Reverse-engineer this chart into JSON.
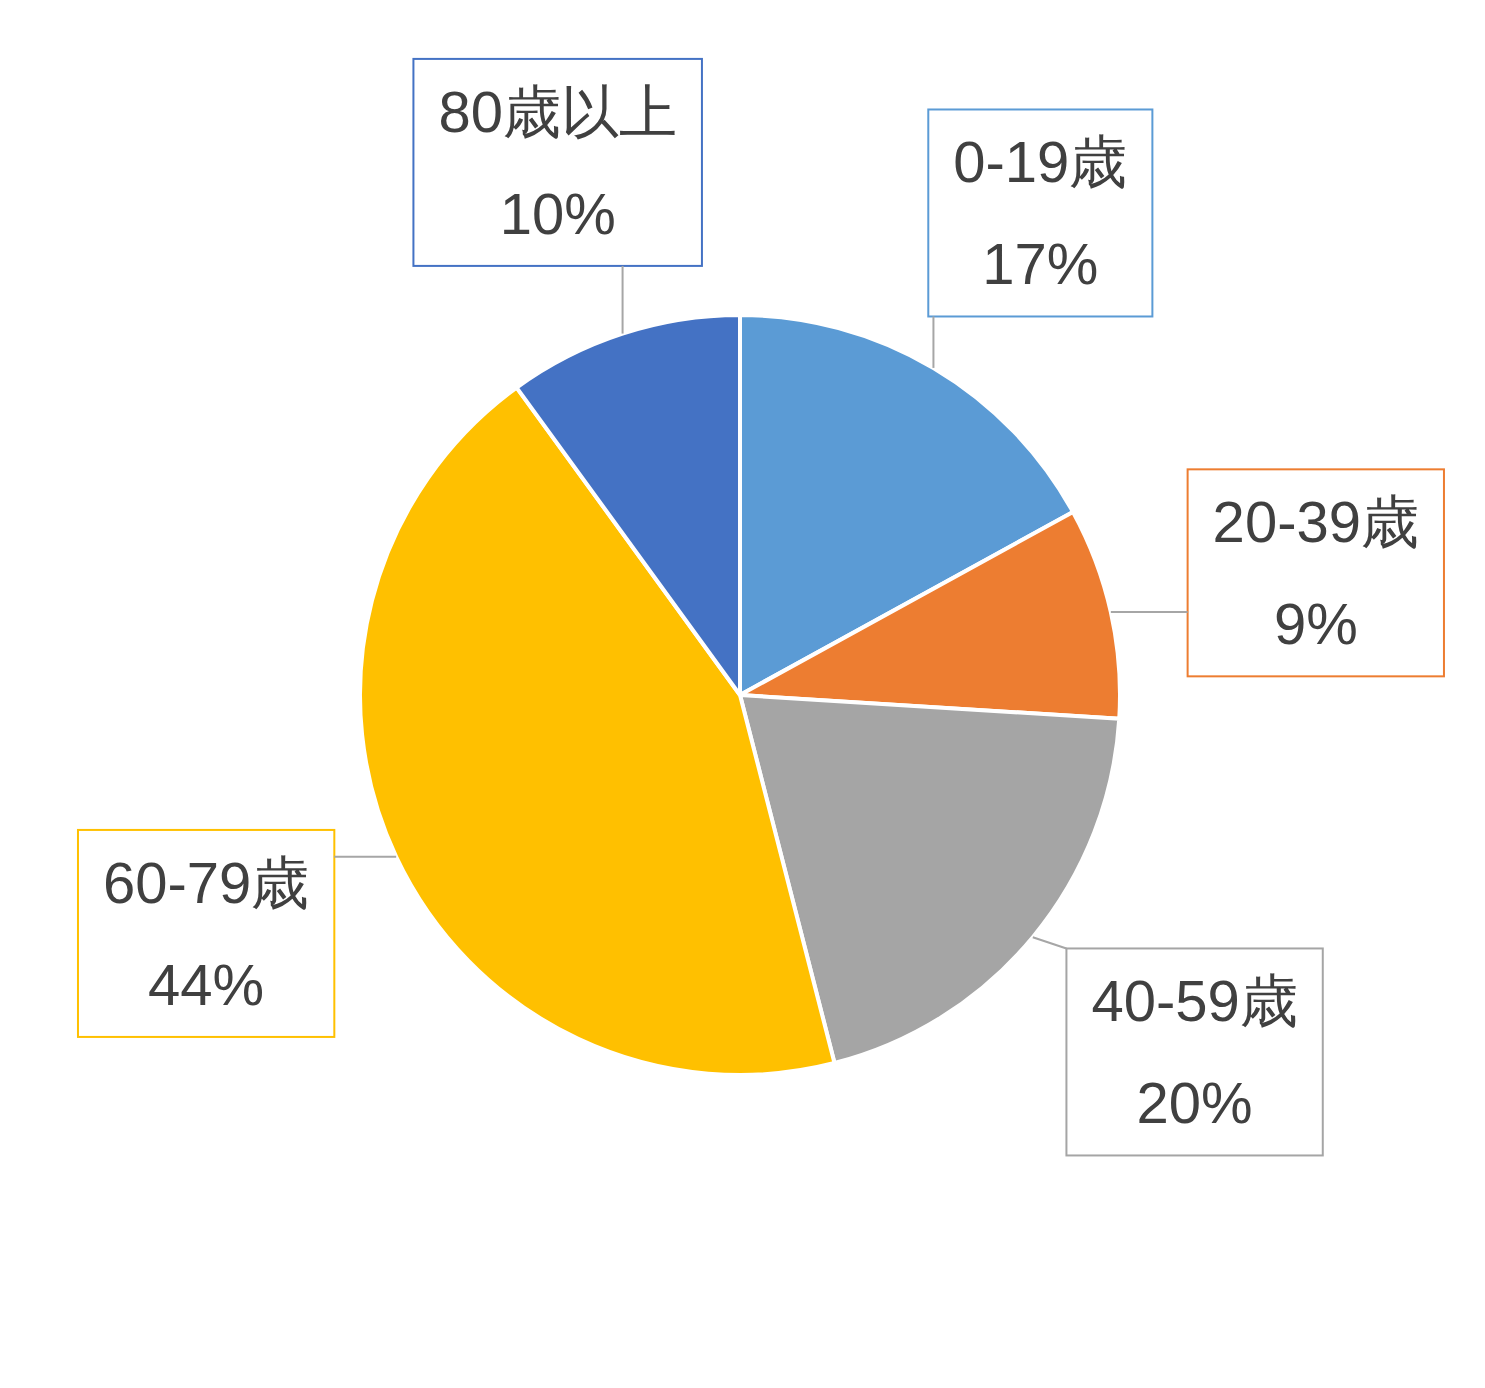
{
  "chart_data": {
    "type": "pie",
    "categories": [
      "0-19歳",
      "20-39歳",
      "40-59歳",
      "60-79歳",
      "80歳以上"
    ],
    "values": [
      17,
      9,
      20,
      44,
      10
    ],
    "value_labels": [
      "17%",
      "9%",
      "20%",
      "44%",
      "10%"
    ],
    "colors": [
      "#5b9bd5",
      "#ed7d31",
      "#a5a5a5",
      "#ffc000",
      "#4472c4"
    ],
    "legend": false
  }
}
